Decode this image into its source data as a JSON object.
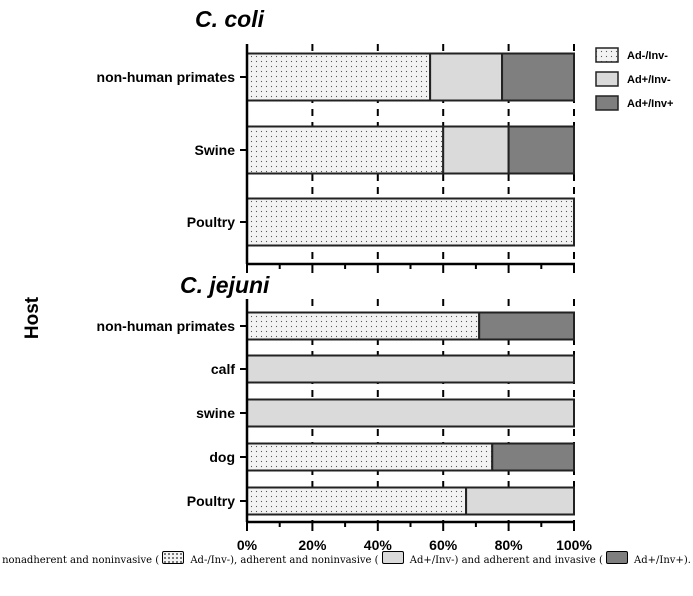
{
  "chart_data": [
    {
      "type": "bar",
      "orientation": "horizontal",
      "stacked": true,
      "title": "C. coli",
      "categories": [
        "non-human primates",
        "Swine",
        "Poultry"
      ],
      "series": [
        {
          "name": "Ad-/Inv-",
          "values": [
            56,
            60,
            100
          ]
        },
        {
          "name": "Ad+/Inv-",
          "values": [
            22,
            20,
            0
          ]
        },
        {
          "name": "Ad+/Inv+",
          "values": [
            22,
            20,
            0
          ]
        }
      ],
      "xlim": [
        0,
        100
      ],
      "grid": "vertical dashed",
      "legend_position": "top-right"
    },
    {
      "type": "bar",
      "orientation": "horizontal",
      "stacked": true,
      "title": "C. jejuni",
      "categories": [
        "non-human primates",
        "calf",
        "swine",
        "dog",
        "Poultry"
      ],
      "series": [
        {
          "name": "Ad-/Inv-",
          "values": [
            71,
            0,
            0,
            75,
            67
          ]
        },
        {
          "name": "Ad+/Inv-",
          "values": [
            0,
            100,
            100,
            0,
            33
          ]
        },
        {
          "name": "Ad+/Inv+",
          "values": [
            29,
            0,
            0,
            25,
            0
          ]
        }
      ],
      "xlim": [
        0,
        100
      ],
      "xticks": [
        "0%",
        "20%",
        "40%",
        "60%",
        "80%",
        "100%"
      ],
      "grid": "vertical dashed"
    }
  ],
  "axis": {
    "ylabel": "Host"
  },
  "legend": {
    "items": [
      "Ad-/Inv-",
      "Ad+/Inv-",
      "Ad+/Inv+"
    ]
  },
  "caption": {
    "part1": "nonadherent and noninvasive (",
    "part2": " Ad-/Inv-), adherent and noninvasive (",
    "part3": " Ad+/Inv-) and adherent and invasive (",
    "part4": " Ad+/Inv+)."
  },
  "colors": {
    "Ad-/Inv-": "#f3f3f3",
    "Ad+/Inv-": "#dadada",
    "Ad+/Inv+": "#7f7f7f"
  }
}
